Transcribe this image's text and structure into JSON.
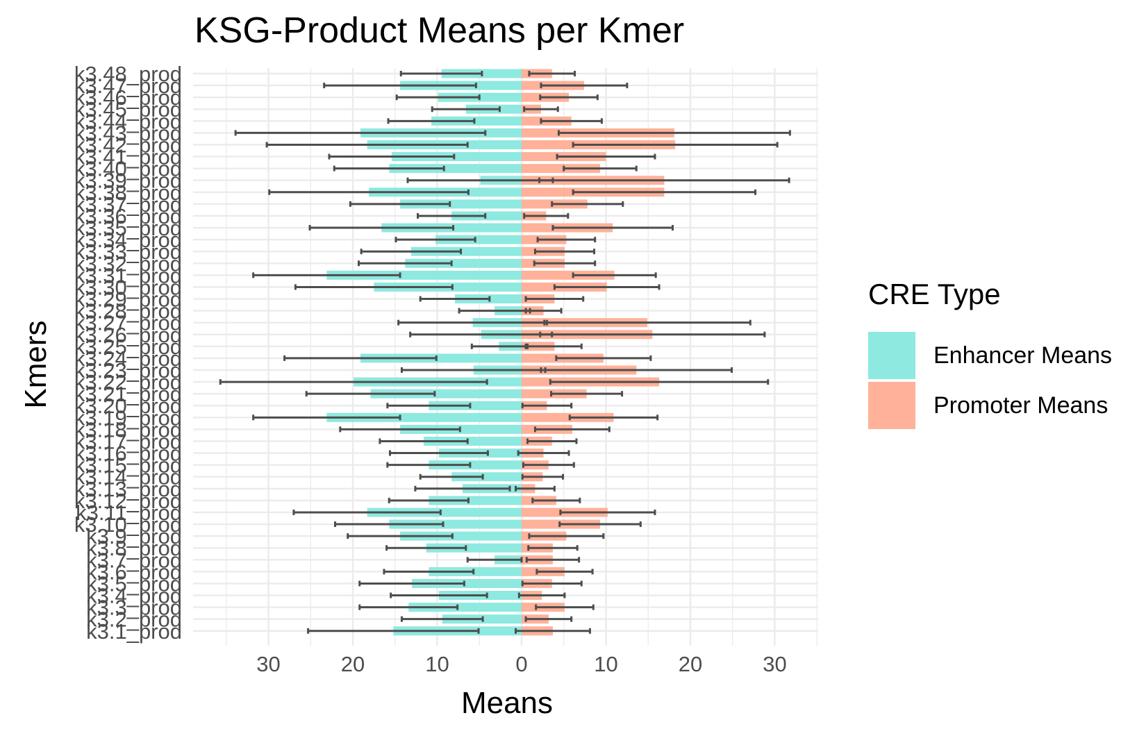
{
  "chart_data": {
    "type": "bar",
    "orientation": "horizontal",
    "title": "KSG-Product Means per Kmer",
    "xlabel": "Means",
    "ylabel": "Kmers",
    "xlim": [
      -39,
      35
    ],
    "x_ticks": [
      -30,
      -20,
      -10,
      0,
      10,
      20,
      30
    ],
    "x_tick_labels": [
      "30",
      "20",
      "10",
      "0",
      "10",
      "20",
      "30"
    ],
    "grid": true,
    "legend_title": "CRE Type",
    "legend_position": "right",
    "colors": {
      "enhancer": "#8EE9E0",
      "promoter": "#FFB199",
      "errorbar": "#4D4D4D",
      "grid": "#EBEBEB"
    },
    "categories": [
      "k3.1_prod",
      "k3.2_prod",
      "k3.3_prod",
      "k3.4_prod",
      "k3.5_prod",
      "k3.6_prod",
      "k3.7_prod",
      "k3.8_prod",
      "k3.9_prod",
      "k3.10_prod",
      "k3.11_prod",
      "k3.12_prod",
      "k3.13_prod",
      "k3.14_prod",
      "k3.15_prod",
      "k3.16_prod",
      "k3.17_prod",
      "k3.18_prod",
      "k3.19_prod",
      "k3.20_prod",
      "k3.21_prod",
      "k3.22_prod",
      "k3.23_prod",
      "k3.24_prod",
      "k3.25_prod",
      "k3.26_prod",
      "k3.27_prod",
      "k3.28_prod",
      "k3.29_prod",
      "k3.30_prod",
      "k3.31_prod",
      "k3.32_prod",
      "k3.33_prod",
      "k3.34_prod",
      "k3.35_prod",
      "k3.36_prod",
      "k3.37_prod",
      "k3.38_prod",
      "k3.39_prod",
      "k3.40_prod",
      "k3.41_prod",
      "k3.42_prod",
      "k3.43_prod",
      "k3.44_prod",
      "k3.45_prod",
      "k3.46_prod",
      "k3.47_prod",
      "k3.48_prod"
    ],
    "series": [
      {
        "name": "Enhancer Means",
        "values": [
          15.2,
          9.4,
          13.4,
          9.8,
          13.0,
          11.0,
          3.2,
          11.3,
          14.4,
          15.7,
          18.3,
          11.0,
          7.0,
          8.3,
          11.0,
          9.8,
          11.6,
          14.4,
          23.1,
          11.0,
          17.9,
          19.9,
          5.7,
          19.1,
          2.7,
          4.8,
          5.8,
          3.2,
          7.9,
          17.5,
          23.1,
          13.8,
          13.1,
          10.2,
          16.6,
          8.3,
          14.4,
          18.1,
          4.9,
          15.7,
          15.4,
          18.3,
          19.1,
          10.7,
          6.6,
          9.9,
          14.4,
          9.5
        ],
        "errors": [
          10.1,
          4.8,
          5.8,
          5.7,
          6.2,
          5.3,
          3.2,
          4.7,
          6.2,
          6.4,
          8.7,
          4.7,
          5.6,
          3.7,
          4.9,
          5.8,
          5.2,
          7.1,
          8.7,
          4.9,
          7.6,
          15.8,
          8.5,
          9.0,
          3.2,
          8.4,
          8.8,
          4.2,
          4.1,
          9.3,
          8.7,
          5.5,
          5.9,
          4.7,
          8.5,
          4.0,
          5.9,
          11.8,
          8.6,
          6.5,
          7.4,
          11.9,
          14.8,
          5.1,
          4.0,
          4.9,
          9.0,
          4.8
        ]
      },
      {
        "name": "Promoter Means",
        "values": [
          3.7,
          3.2,
          5.1,
          2.4,
          3.6,
          5.1,
          3.7,
          3.7,
          5.3,
          9.3,
          10.2,
          4.1,
          1.6,
          2.5,
          3.2,
          2.6,
          3.6,
          6.0,
          10.9,
          3.0,
          7.7,
          16.3,
          13.6,
          9.7,
          3.9,
          15.5,
          14.9,
          2.6,
          3.9,
          10.1,
          11.0,
          5.1,
          5.1,
          5.3,
          10.8,
          2.9,
          7.8,
          16.9,
          16.9,
          9.3,
          10.0,
          18.2,
          18.1,
          5.9,
          2.3,
          5.6,
          7.4,
          3.6
        ],
        "errors": [
          4.4,
          2.7,
          3.4,
          2.7,
          3.5,
          3.3,
          3.1,
          2.9,
          4.4,
          4.8,
          5.6,
          2.8,
          2.3,
          2.4,
          3.0,
          3.0,
          2.9,
          4.4,
          5.2,
          2.9,
          4.2,
          12.9,
          11.3,
          5.6,
          3.2,
          13.3,
          12.2,
          2.1,
          3.4,
          6.2,
          4.9,
          3.6,
          3.5,
          3.4,
          7.1,
          2.6,
          4.2,
          10.8,
          14.8,
          4.3,
          5.8,
          12.1,
          13.7,
          3.6,
          2.0,
          3.4,
          5.1,
          2.7
        ]
      }
    ]
  }
}
